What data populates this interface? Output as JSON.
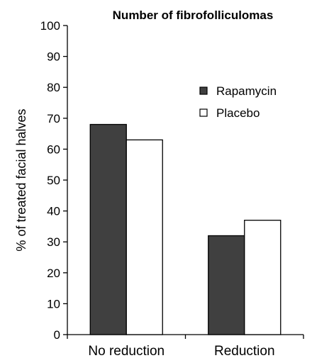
{
  "chart_data": {
    "type": "bar",
    "title": "Number of fibrofolliculomas",
    "xlabel": "",
    "ylabel": "% of treated facial halves",
    "categories": [
      "No reduction",
      "Reduction"
    ],
    "ylim": [
      0,
      100
    ],
    "yticks": [
      0,
      10,
      20,
      30,
      40,
      50,
      60,
      70,
      80,
      90,
      100
    ],
    "grid": false,
    "legend_position": "upper-right",
    "series": [
      {
        "name": "Rapamycin",
        "values": [
          68,
          32
        ],
        "color": "#404040"
      },
      {
        "name": "Placebo",
        "values": [
          63,
          37
        ],
        "color": "#ffffff"
      }
    ]
  }
}
